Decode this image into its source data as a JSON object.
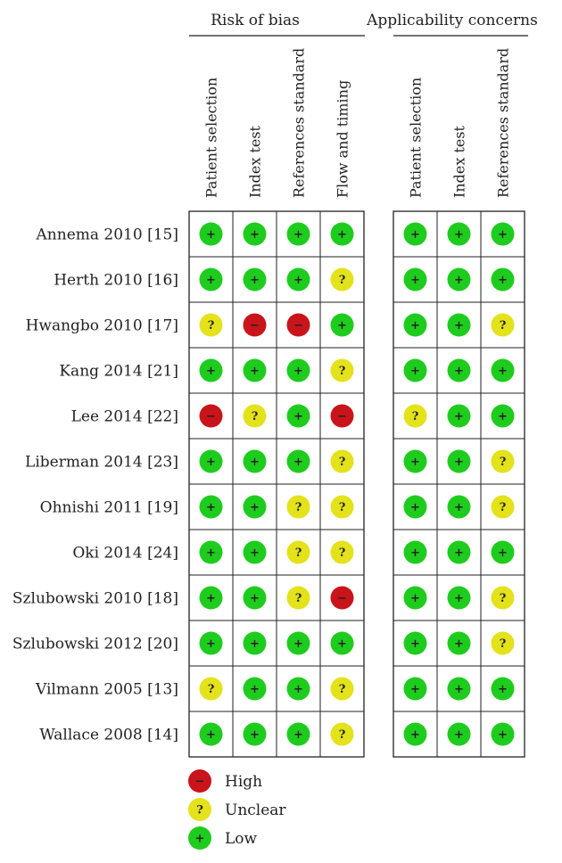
{
  "chart_data": {
    "type": "table",
    "title": "",
    "groups": [
      {
        "title": "Risk of bias",
        "columns": [
          "Patient selection",
          "Index test",
          "References standard",
          "Flow and timing"
        ]
      },
      {
        "title": "Applicability concerns",
        "columns": [
          "Patient selection",
          "Index test",
          "References standard"
        ]
      }
    ],
    "studies": [
      {
        "label": "Annema 2010 [15]",
        "risk": [
          "low",
          "low",
          "low",
          "low"
        ],
        "applicability": [
          "low",
          "low",
          "low"
        ]
      },
      {
        "label": "Herth 2010 [16]",
        "risk": [
          "low",
          "low",
          "low",
          "unclear"
        ],
        "applicability": [
          "low",
          "low",
          "low"
        ]
      },
      {
        "label": "Hwangbo 2010 [17]",
        "risk": [
          "unclear",
          "high",
          "high",
          "low"
        ],
        "applicability": [
          "low",
          "low",
          "unclear"
        ]
      },
      {
        "label": "Kang 2014 [21]",
        "risk": [
          "low",
          "low",
          "low",
          "unclear"
        ],
        "applicability": [
          "low",
          "low",
          "low"
        ]
      },
      {
        "label": "Lee 2014 [22]",
        "risk": [
          "high",
          "unclear",
          "low",
          "high"
        ],
        "applicability": [
          "unclear",
          "low",
          "low"
        ]
      },
      {
        "label": "Liberman 2014 [23]",
        "risk": [
          "low",
          "low",
          "low",
          "unclear"
        ],
        "applicability": [
          "low",
          "low",
          "unclear"
        ]
      },
      {
        "label": "Ohnishi 2011 [19]",
        "risk": [
          "low",
          "low",
          "unclear",
          "unclear"
        ],
        "applicability": [
          "low",
          "low",
          "unclear"
        ]
      },
      {
        "label": "Oki 2014 [24]",
        "risk": [
          "low",
          "low",
          "unclear",
          "unclear"
        ],
        "applicability": [
          "low",
          "low",
          "low"
        ]
      },
      {
        "label": "Szlubowski 2010 [18]",
        "risk": [
          "low",
          "low",
          "unclear",
          "high"
        ],
        "applicability": [
          "low",
          "low",
          "unclear"
        ]
      },
      {
        "label": "Szlubowski 2012 [20]",
        "risk": [
          "low",
          "low",
          "low",
          "low"
        ],
        "applicability": [
          "low",
          "low",
          "unclear"
        ]
      },
      {
        "label": "Vilmann 2005 [13]",
        "risk": [
          "unclear",
          "low",
          "low",
          "unclear"
        ],
        "applicability": [
          "low",
          "low",
          "low"
        ]
      },
      {
        "label": "Wallace 2008 [14]",
        "risk": [
          "low",
          "low",
          "low",
          "unclear"
        ],
        "applicability": [
          "low",
          "low",
          "low"
        ]
      }
    ],
    "legend": [
      {
        "key": "high",
        "label": "High",
        "symbol": "−",
        "color": "#c8141a"
      },
      {
        "key": "unclear",
        "label": "Unclear",
        "symbol": "?",
        "color": "#e3e21b"
      },
      {
        "key": "low",
        "label": "Low",
        "symbol": "+",
        "color": "#1ecc1e"
      }
    ]
  }
}
